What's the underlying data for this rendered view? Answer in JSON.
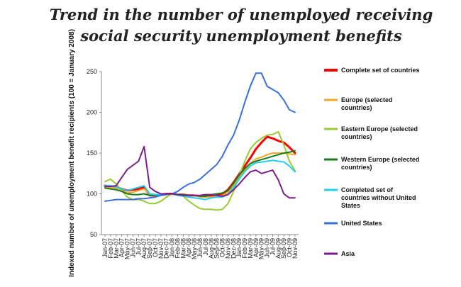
{
  "chart_data": {
    "type": "line",
    "title": "Trend in the number of unemployed receiving social security unemployment benefits",
    "xlabel": "",
    "ylabel": "Indexed number of unemployment benefit recipients (100 = January 2008)",
    "ylim": [
      50,
      250
    ],
    "yticks": [
      50,
      100,
      150,
      200,
      250
    ],
    "grid": false,
    "legend_position": "right",
    "categories": [
      "Jan-07",
      "Feb-07",
      "Mar-07",
      "Apr-07",
      "May-07",
      "Jun-07",
      "Jul-07",
      "Aug-07",
      "Sep-07",
      "Oct-07",
      "Nov-07",
      "Dec-07",
      "Jan-08",
      "Feb-08",
      "Mar-08",
      "Apr-08",
      "May-08",
      "Jun-08",
      "Jul-08",
      "Aug-08",
      "Sep-08",
      "Oct-08",
      "Nov-08",
      "Dec-08",
      "Jan-09",
      "Feb-09",
      "Mar-09",
      "Apr-09",
      "May-09",
      "Jun-09",
      "Jul-09",
      "Aug-09",
      "Sep-09",
      "Oct-09",
      "Nov-09"
    ],
    "series": [
      {
        "name": "Complete set of countries",
        "color": "#ff0000",
        "width": 3,
        "values": [
          110,
          109,
          108,
          106,
          104,
          105,
          106,
          108,
          98,
          98,
          99,
          100,
          100,
          99,
          99,
          98,
          98,
          97,
          97,
          98,
          99,
          100,
          105,
          114,
          124,
          134,
          144,
          155,
          163,
          170,
          168,
          165,
          163,
          157,
          150
        ]
      },
      {
        "name": "Europe  (selected countries)",
        "color": "#f5a623",
        "width": 2,
        "values": [
          108,
          108,
          107,
          104,
          101,
          102,
          104,
          106,
          99,
          98,
          99,
          100,
          100,
          99,
          99,
          98,
          98,
          96,
          96,
          96,
          97,
          98,
          102,
          110,
          120,
          129,
          137,
          143,
          145,
          148,
          150,
          150,
          150,
          149,
          148
        ]
      },
      {
        "name": "Eastern Europe (selected countries)",
        "color": "#99cc33",
        "width": 2,
        "values": [
          115,
          118,
          112,
          104,
          96,
          93,
          93,
          91,
          88,
          88,
          91,
          96,
          100,
          100,
          97,
          91,
          86,
          82,
          81,
          81,
          80,
          81,
          88,
          103,
          122,
          140,
          155,
          163,
          168,
          172,
          173,
          176,
          160,
          140,
          128
        ]
      },
      {
        "name": "Western Europe (selected countries)",
        "color": "#1b7a1b",
        "width": 2,
        "values": [
          107,
          106,
          105,
          103,
          100,
          99,
          99,
          100,
          98,
          98,
          99,
          100,
          100,
          99,
          99,
          98,
          98,
          97,
          97,
          99,
          100,
          101,
          104,
          113,
          123,
          131,
          137,
          140,
          142,
          144,
          146,
          148,
          150,
          151,
          153
        ]
      },
      {
        "name": "Completed set of countries without United States",
        "color": "#20d0f0",
        "width": 2,
        "values": [
          110,
          110,
          108,
          106,
          104,
          106,
          108,
          110,
          100,
          99,
          99,
          100,
          100,
          98,
          97,
          96,
          95,
          94,
          93,
          95,
          96,
          96,
          99,
          108,
          118,
          127,
          134,
          138,
          139,
          140,
          141,
          140,
          139,
          134,
          127
        ]
      },
      {
        "name": "United States",
        "color": "#3a6fe0",
        "width": 2,
        "values": [
          91,
          92,
          93,
          93,
          93,
          93,
          94,
          94,
          95,
          96,
          98,
          99,
          100,
          103,
          108,
          112,
          114,
          118,
          124,
          130,
          136,
          146,
          160,
          172,
          190,
          212,
          232,
          248,
          248,
          232,
          228,
          224,
          215,
          203,
          200
        ]
      },
      {
        "name": "Asia",
        "color": "#7a1e8c",
        "width": 2,
        "values": [
          109,
          109,
          110,
          120,
          130,
          135,
          140,
          158,
          108,
          103,
          100,
          100,
          100,
          99,
          98,
          98,
          98,
          98,
          99,
          99,
          98,
          97,
          99,
          105,
          112,
          120,
          127,
          129,
          125,
          127,
          129,
          117,
          100,
          95,
          95
        ]
      }
    ]
  }
}
